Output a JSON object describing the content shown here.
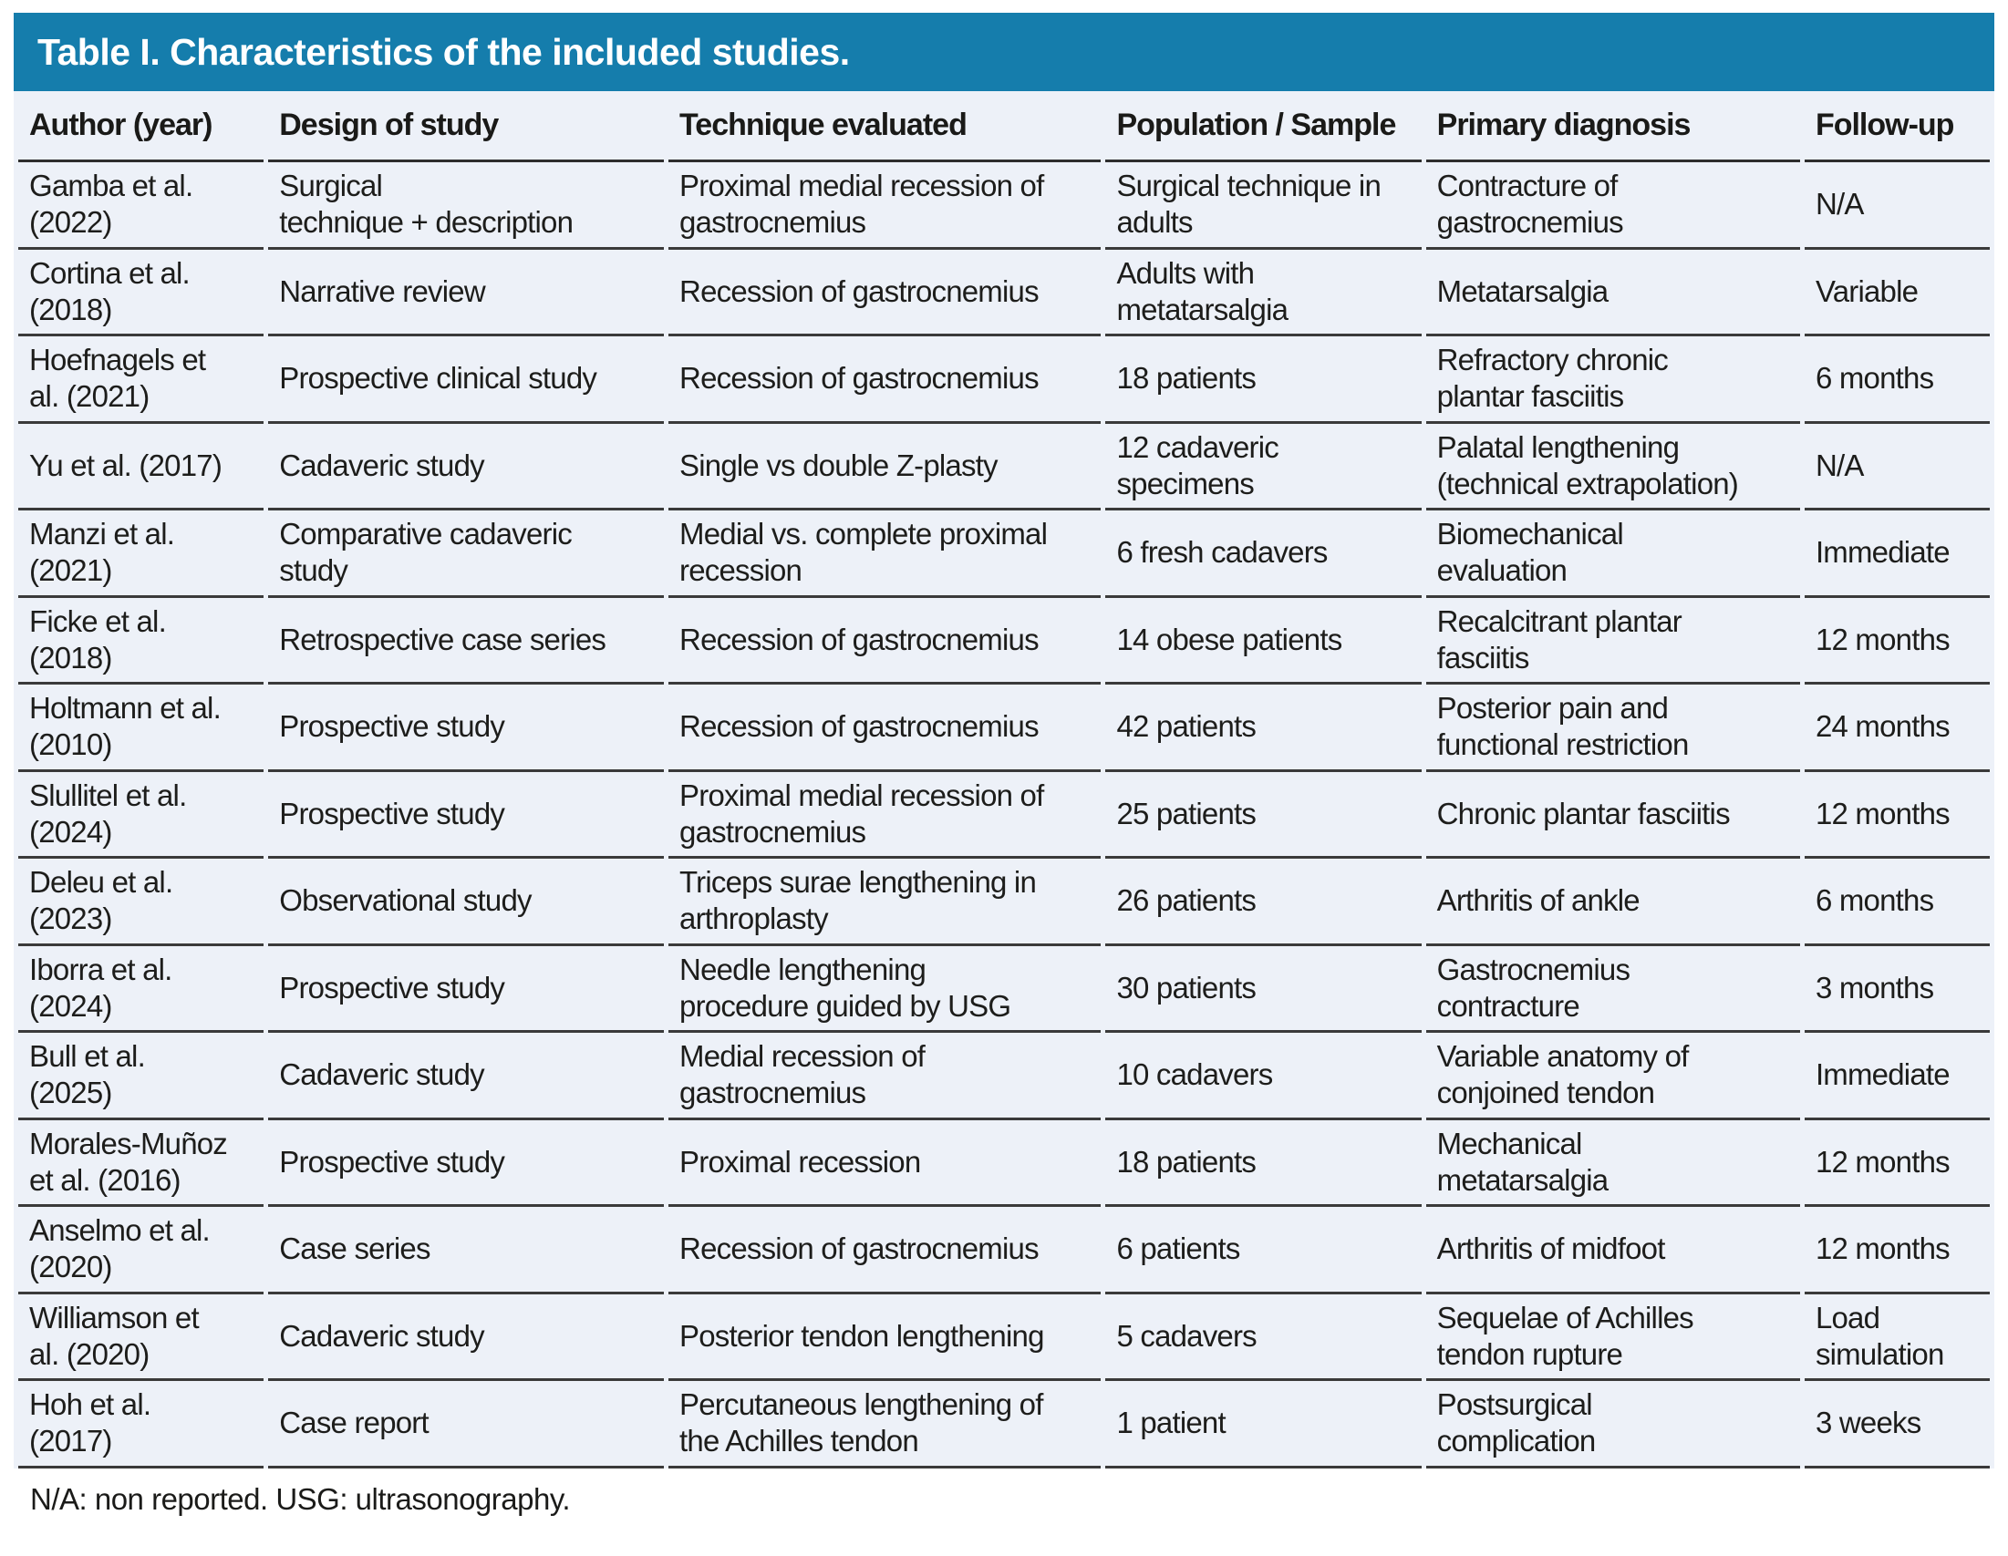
{
  "title": "Table I. Characteristics of the included studies.",
  "columns": [
    "Author (year)",
    "Design of study",
    "Technique evaluated",
    "Population / Sample",
    "Primary diagnosis",
    "Follow-up"
  ],
  "rows": [
    {
      "author": "Gamba et al.\n(2022)",
      "design": "Surgical\ntechnique + description",
      "technique": "Proximal medial recession of\ngastrocnemius",
      "population": "Surgical technique in\nadults",
      "diagnosis": "Contracture of\ngastrocnemius",
      "follow_up": "N/A"
    },
    {
      "author": "Cortina et al.\n(2018)",
      "design": "Narrative review",
      "technique": "Recession of gastrocnemius",
      "population": "Adults with\nmetatarsalgia",
      "diagnosis": "Metatarsalgia",
      "follow_up": "Variable"
    },
    {
      "author": "Hoefnagels et\nal. (2021)",
      "design": "Prospective clinical study",
      "technique": "Recession of gastrocnemius",
      "population": "18 patients",
      "diagnosis": "Refractory chronic\nplantar fasciitis",
      "follow_up": "6 months"
    },
    {
      "author": "Yu et al. (2017)",
      "design": "Cadaveric study",
      "technique": "Single vs double Z-plasty",
      "population": "12 cadaveric\nspecimens",
      "diagnosis": "Palatal lengthening\n(technical extrapolation)",
      "follow_up": "N/A"
    },
    {
      "author": "Manzi et al.\n(2021)",
      "design": "Comparative cadaveric\nstudy",
      "technique": "Medial vs. complete proximal\nrecession",
      "population": "6 fresh cadavers",
      "diagnosis": "Biomechanical\nevaluation",
      "follow_up": "Immediate"
    },
    {
      "author": "Ficke et al.\n(2018)",
      "design": "Retrospective case series",
      "technique": "Recession of gastrocnemius",
      "population": "14 obese patients",
      "diagnosis": "Recalcitrant plantar\nfasciitis",
      "follow_up": "12 months"
    },
    {
      "author": "Holtmann et al.\n(2010)",
      "design": "Prospective study",
      "technique": "Recession of gastrocnemius",
      "population": "42 patients",
      "diagnosis": "Posterior pain and\nfunctional restriction",
      "follow_up": "24 months"
    },
    {
      "author": "Slullitel et al.\n(2024)",
      "design": "Prospective study",
      "technique": "Proximal medial recession of\ngastrocnemius",
      "population": "25 patients",
      "diagnosis": "Chronic plantar fasciitis",
      "follow_up": "12 months"
    },
    {
      "author": "Deleu et al.\n(2023)",
      "design": "Observational study",
      "technique": "Triceps surae lengthening in\narthroplasty",
      "population": "26 patients",
      "diagnosis": "Arthritis of ankle",
      "follow_up": "6 months"
    },
    {
      "author": "Iborra et al.\n(2024)",
      "design": "Prospective study",
      "technique": "Needle lengthening\nprocedure guided by USG",
      "population": "30 patients",
      "diagnosis": "Gastrocnemius\ncontracture",
      "follow_up": "3 months"
    },
    {
      "author": "Bull et al.\n(2025)",
      "design": "Cadaveric study",
      "technique": "Medial recession of\ngastrocnemius",
      "population": "10 cadavers",
      "diagnosis": "Variable anatomy of\nconjoined tendon",
      "follow_up": "Immediate"
    },
    {
      "author": "Morales-Muñoz\net al. (2016)",
      "design": "Prospective study",
      "technique": "Proximal recession",
      "population": "18 patients",
      "diagnosis": "Mechanical\nmetatarsalgia",
      "follow_up": "12 months"
    },
    {
      "author": "Anselmo et al.\n(2020)",
      "design": "Case series",
      "technique": "Recession of gastrocnemius",
      "population": "6 patients",
      "diagnosis": "Arthritis of midfoot",
      "follow_up": "12 months"
    },
    {
      "author": "Williamson et\nal. (2020)",
      "design": "Cadaveric study",
      "technique": "Posterior tendon lengthening",
      "population": "5 cadavers",
      "diagnosis": "Sequelae of Achilles\ntendon rupture",
      "follow_up": "Load\nsimulation"
    },
    {
      "author": "Hoh et al.\n(2017)",
      "design": "Case report",
      "technique": "Percutaneous lengthening of\nthe Achilles tendon",
      "population": "1 patient",
      "diagnosis": "Postsurgical\ncomplication",
      "follow_up": "3 weeks"
    }
  ],
  "footnote": "N/A: non reported. USG: ultrasonography.",
  "colors": {
    "title_bar": "#157dac",
    "title_text": "#ffffff",
    "row_background": "#edf1f8",
    "separator_line": "#3a3a3a",
    "body_text": "#1d1d1b"
  }
}
